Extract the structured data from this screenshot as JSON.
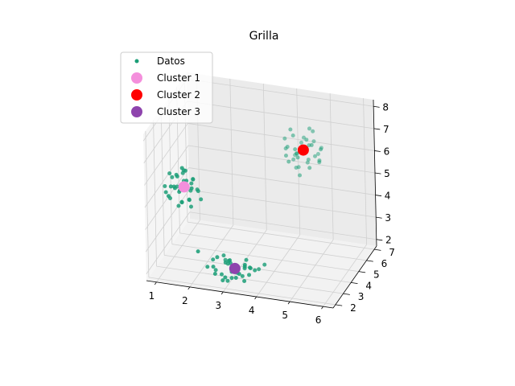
{
  "chart_data": {
    "type": "scatter",
    "projection": "3d",
    "title": "Grilla",
    "xlabel": "",
    "ylabel": "",
    "zlabel": "",
    "x_ticks": [
      "1",
      "2",
      "3",
      "4",
      "5",
      "6"
    ],
    "y_ticks": [
      "2",
      "3",
      "4",
      "5",
      "6",
      "7"
    ],
    "z_ticks": [
      "2",
      "3",
      "4",
      "5",
      "6",
      "7",
      "8"
    ],
    "xlim": [
      0.7,
      6.3
    ],
    "ylim": [
      1.7,
      7.3
    ],
    "zlim": [
      1.7,
      8.3
    ],
    "grid": true,
    "legend_position": "top-left",
    "series": [
      {
        "name": "Datos",
        "color": "#1b9e77",
        "marker_size": "small",
        "points": [
          [
            3.0,
            2.0,
            2.2
          ],
          [
            3.2,
            2.3,
            2.6
          ],
          [
            2.8,
            2.4,
            2.1
          ],
          [
            3.4,
            2.1,
            2.4
          ],
          [
            3.1,
            2.6,
            2.3
          ],
          [
            2.6,
            2.2,
            2.5
          ],
          [
            3.6,
            2.5,
            2.2
          ],
          [
            3.3,
            1.9,
            2.8
          ],
          [
            2.9,
            2.8,
            2.4
          ],
          [
            3.5,
            2.3,
            2.0
          ],
          [
            3.0,
            2.5,
            2.7
          ],
          [
            2.7,
            2.0,
            2.3
          ],
          [
            3.8,
            2.4,
            2.5
          ],
          [
            3.2,
            2.7,
            2.1
          ],
          [
            2.5,
            2.6,
            2.6
          ],
          [
            3.4,
            2.8,
            2.3
          ],
          [
            3.1,
            2.2,
            2.9
          ],
          [
            2.9,
            2.1,
            2.0
          ],
          [
            3.7,
            2.2,
            2.7
          ],
          [
            3.3,
            2.4,
            2.5
          ],
          [
            2.8,
            2.7,
            2.8
          ],
          [
            3.0,
            2.3,
            1.9
          ],
          [
            3.6,
            2.7,
            2.4
          ],
          [
            2.6,
            2.5,
            2.2
          ],
          [
            3.2,
            2.0,
            2.5
          ],
          [
            3.5,
            2.6,
            2.8
          ],
          [
            2.9,
            2.5,
            2.6
          ],
          [
            3.1,
            2.9,
            2.2
          ],
          [
            2.7,
            2.3,
            2.9
          ],
          [
            3.4,
            2.5,
            2.1
          ],
          [
            4.0,
            2.8,
            2.6
          ],
          [
            2.4,
            2.3,
            2.4
          ],
          [
            3.3,
            2.1,
            2.2
          ],
          [
            3.0,
            2.7,
            2.5
          ],
          [
            3.8,
            2.9,
            2.3
          ],
          [
            2.2,
            2.0,
            3.2
          ],
          [
            3.6,
            2.0,
            2.9
          ],
          [
            3.1,
            2.4,
            2.0
          ],
          [
            2.8,
            2.9,
            2.5
          ],
          [
            3.5,
            2.4,
            2.6
          ],
          [
            1.6,
            2.3,
            5.6
          ],
          [
            1.9,
            2.6,
            5.9
          ],
          [
            1.5,
            2.8,
            5.4
          ],
          [
            1.8,
            2.4,
            6.1
          ],
          [
            1.4,
            2.5,
            5.7
          ],
          [
            2.0,
            2.9,
            5.5
          ],
          [
            1.7,
            2.2,
            5.2
          ],
          [
            1.3,
            2.7,
            6.0
          ],
          [
            1.9,
            2.3,
            5.3
          ],
          [
            1.6,
            2.9,
            5.8
          ],
          [
            1.5,
            2.4,
            6.3
          ],
          [
            2.1,
            2.6,
            5.6
          ],
          [
            1.2,
            2.3,
            5.5
          ],
          [
            1.8,
            2.7,
            5.1
          ],
          [
            1.7,
            2.5,
            6.5
          ],
          [
            1.4,
            2.1,
            5.9
          ],
          [
            2.0,
            2.4,
            6.2
          ],
          [
            1.6,
            2.6,
            5.0
          ],
          [
            1.3,
            2.4,
            5.2
          ],
          [
            1.9,
            2.8,
            6.0
          ],
          [
            1.5,
            2.2,
            5.8
          ],
          [
            1.8,
            2.9,
            5.4
          ],
          [
            1.1,
            2.6,
            5.6
          ],
          [
            1.7,
            2.3,
            6.7
          ],
          [
            2.2,
            2.5,
            5.3
          ],
          [
            1.6,
            2.1,
            6.4
          ],
          [
            1.4,
            2.9,
            5.5
          ],
          [
            1.9,
            2.5,
            4.9
          ],
          [
            1.2,
            2.8,
            6.1
          ],
          [
            1.7,
            2.7,
            5.7
          ],
          [
            2.0,
            2.2,
            5.9
          ],
          [
            1.5,
            2.6,
            4.8
          ],
          [
            1.8,
            2.3,
            6.6
          ],
          [
            1.3,
            2.2,
            5.4
          ],
          [
            1.6,
            2.8,
            6.2
          ],
          [
            4.2,
            6.3,
            5.9
          ],
          [
            4.5,
            6.6,
            6.2
          ],
          [
            4.0,
            6.1,
            5.6
          ],
          [
            4.7,
            6.5,
            5.8
          ],
          [
            4.3,
            6.8,
            6.4
          ],
          [
            3.9,
            6.4,
            6.1
          ],
          [
            4.6,
            6.2,
            5.4
          ],
          [
            4.1,
            6.7,
            5.7
          ],
          [
            4.4,
            6.0,
            6.3
          ],
          [
            4.8,
            6.9,
            6.0
          ],
          [
            4.2,
            6.5,
            5.2
          ],
          [
            3.8,
            6.6,
            5.9
          ],
          [
            4.5,
            6.3,
            6.6
          ],
          [
            4.0,
            6.9,
            5.5
          ],
          [
            4.6,
            6.7,
            6.8
          ],
          [
            4.3,
            6.2,
            5.0
          ],
          [
            4.9,
            6.4,
            6.2
          ],
          [
            4.1,
            6.3,
            6.7
          ],
          [
            4.4,
            6.8,
            5.3
          ],
          [
            3.9,
            6.2,
            5.8
          ],
          [
            4.7,
            6.1,
            6.5
          ],
          [
            4.2,
            6.9,
            6.1
          ],
          [
            4.5,
            6.5,
            5.6
          ],
          [
            4.0,
            6.4,
            6.9
          ],
          [
            4.8,
            6.6,
            5.5
          ],
          [
            4.3,
            6.0,
            5.9
          ],
          [
            4.6,
            6.8,
            6.3
          ],
          [
            4.1,
            6.6,
            5.1
          ],
          [
            4.4,
            6.3,
            6.0
          ],
          [
            3.8,
            6.5,
            6.4
          ],
          [
            4.7,
            6.9,
            5.7
          ],
          [
            4.2,
            6.1,
            6.2
          ],
          [
            4.5,
            6.7,
            6.9
          ],
          [
            4.9,
            6.2,
            5.8
          ],
          [
            4.0,
            6.7,
            5.4
          ]
        ]
      },
      {
        "name": "Cluster 1",
        "color": "#f48fdc",
        "marker_size": "large",
        "points": [
          [
            1.7,
            2.5,
            5.75
          ]
        ]
      },
      {
        "name": "Cluster 2",
        "color": "#ff0000",
        "marker_size": "large",
        "points": [
          [
            4.35,
            6.5,
            6.0
          ]
        ]
      },
      {
        "name": "Cluster 3",
        "color": "#8e44ad",
        "marker_size": "large",
        "points": [
          [
            3.2,
            2.4,
            2.45
          ]
        ]
      }
    ]
  }
}
